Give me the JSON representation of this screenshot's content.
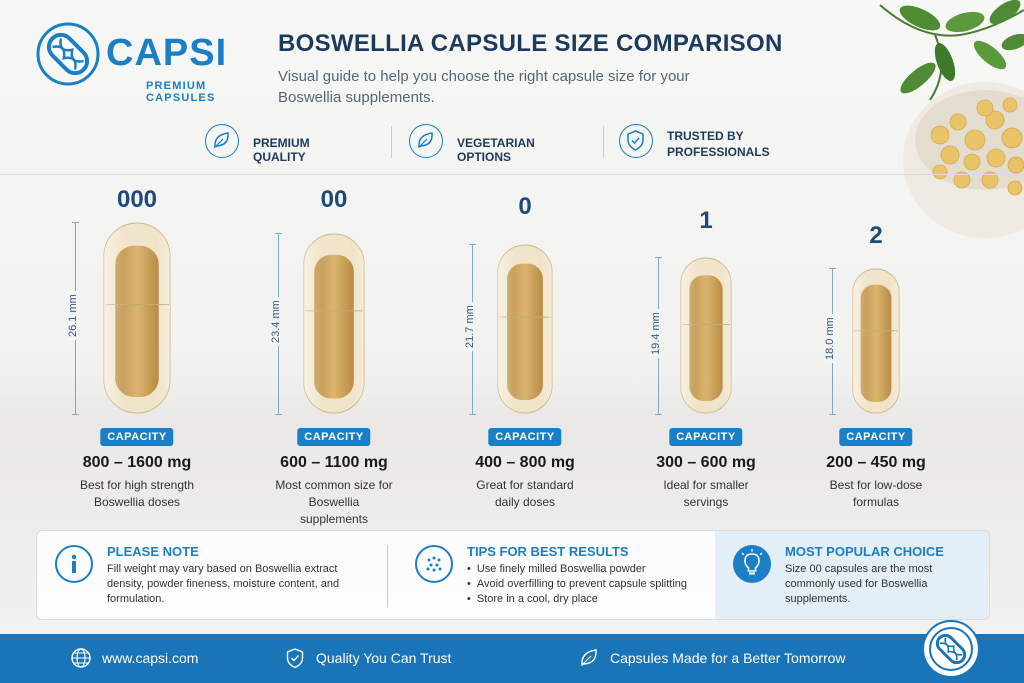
{
  "brand": {
    "name": "CAPSI",
    "tagline": "PREMIUM CAPSULES",
    "logo_icon": "capsule-dna-logo-icon",
    "primary_color": "#1a7fc4"
  },
  "header": {
    "title": "BOSWELLIA CAPSULE SIZE COMPARISON",
    "subtitle": "Visual guide to help you choose the right capsule size for your Boswellia supplements."
  },
  "features": [
    {
      "icon": "leaf-icon",
      "label": "PREMIUM QUALITY"
    },
    {
      "icon": "leaf-icon",
      "label": "VEGETARIAN OPTIONS"
    },
    {
      "icon": "shield-check-icon",
      "label": "TRUSTED BY PROFESSIONALS"
    }
  ],
  "capsules": [
    {
      "size": "000",
      "length": "26.1 mm",
      "badge": "CAPACITY",
      "range": "800 – 1600 mg",
      "desc": "Best for high strength Boswellia doses"
    },
    {
      "size": "00",
      "length": "23.4 mm",
      "badge": "CAPACITY",
      "range": "600 – 1100 mg",
      "desc": "Most common size for Boswellia supplements"
    },
    {
      "size": "0",
      "length": "21.7 mm",
      "badge": "CAPACITY",
      "range": "400 – 800 mg",
      "desc": "Great for standard daily doses"
    },
    {
      "size": "1",
      "length": "19.4 mm",
      "badge": "CAPACITY",
      "range": "300 – 600 mg",
      "desc": "Ideal for smaller servings"
    },
    {
      "size": "2",
      "length": "18.0 mm",
      "badge": "CAPACITY",
      "range": "200 – 450 mg",
      "desc": "Best for low-dose formulas"
    }
  ],
  "info": {
    "note": {
      "icon": "info-icon",
      "title": "PLEASE NOTE",
      "text": "Fill weight may vary based on Boswellia extract density, powder fineness, moisture content, and formulation."
    },
    "tips": {
      "icon": "powder-dots-icon",
      "title": "TIPS FOR BEST RESULTS",
      "items": [
        "Use finely milled Boswellia powder",
        "Avoid overfilling to prevent capsule splitting",
        "Store in a cool, dry place"
      ]
    },
    "popular": {
      "icon": "lightbulb-icon",
      "title": "MOST POPULAR CHOICE",
      "text": "Size 00 capsules are the most commonly used for Boswellia supplements."
    }
  },
  "footer": {
    "items": [
      {
        "icon": "globe-icon",
        "label": "www.capsi.com"
      },
      {
        "icon": "shield-check-icon",
        "label": "Quality You Can Trust"
      },
      {
        "icon": "leaf-icon",
        "label": "Capsules Made for a Better Tomorrow"
      }
    ],
    "bar_color": "#1a74b8"
  }
}
